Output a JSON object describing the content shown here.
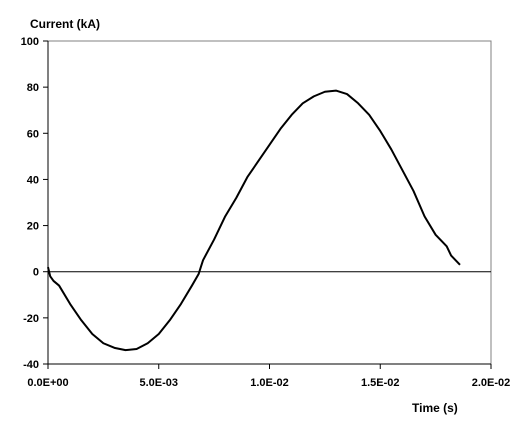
{
  "chart_data": {
    "type": "line",
    "title": "",
    "ylabel": "Current (kA)",
    "xlabel": "Time (s)",
    "xlim": [
      0,
      0.02
    ],
    "ylim": [
      -40,
      100
    ],
    "x_ticks": [
      0,
      0.005,
      0.01,
      0.015,
      0.02
    ],
    "x_tick_labels": [
      "0.0E+00",
      "5.0E-03",
      "1.0E-02",
      "1.5E-02",
      "2.0E-02"
    ],
    "y_ticks": [
      -40,
      -20,
      0,
      20,
      40,
      60,
      80,
      100
    ],
    "y_tick_labels": [
      "-40",
      "-20",
      "0",
      "20",
      "40",
      "60",
      "80",
      "100"
    ],
    "grid": false,
    "legend": "none",
    "series": [
      {
        "color": "#000000",
        "x": [
          0,
          0.0001,
          0.00025,
          0.0005,
          0.001,
          0.0015,
          0.002,
          0.0025,
          0.003,
          0.0035,
          0.004,
          0.0045,
          0.005,
          0.0055,
          0.006,
          0.0065,
          0.0068,
          0.0069,
          0.007,
          0.0075,
          0.008,
          0.0085,
          0.009,
          0.0095,
          0.01,
          0.0105,
          0.011,
          0.0115,
          0.012,
          0.0125,
          0.013,
          0.0135,
          0.014,
          0.0145,
          0.015,
          0.0155,
          0.016,
          0.0165,
          0.017,
          0.0175,
          0.0178,
          0.018,
          0.0182,
          0.0184,
          0.0186
        ],
        "y": [
          2,
          -2,
          -4,
          -6,
          -14,
          -21,
          -27,
          -31,
          -33,
          -34,
          -33.5,
          -31,
          -27,
          -21,
          -14,
          -6,
          -1,
          2,
          5,
          14,
          24,
          32,
          41,
          48,
          55,
          62,
          68,
          73,
          76,
          78,
          78.5,
          77,
          73,
          68,
          61,
          53,
          44,
          35,
          24,
          16,
          13,
          11,
          7,
          5,
          3
        ]
      },
      {
        "color": "#000000",
        "x": [
          0,
          0.02
        ],
        "y": [
          0,
          0
        ]
      }
    ]
  }
}
